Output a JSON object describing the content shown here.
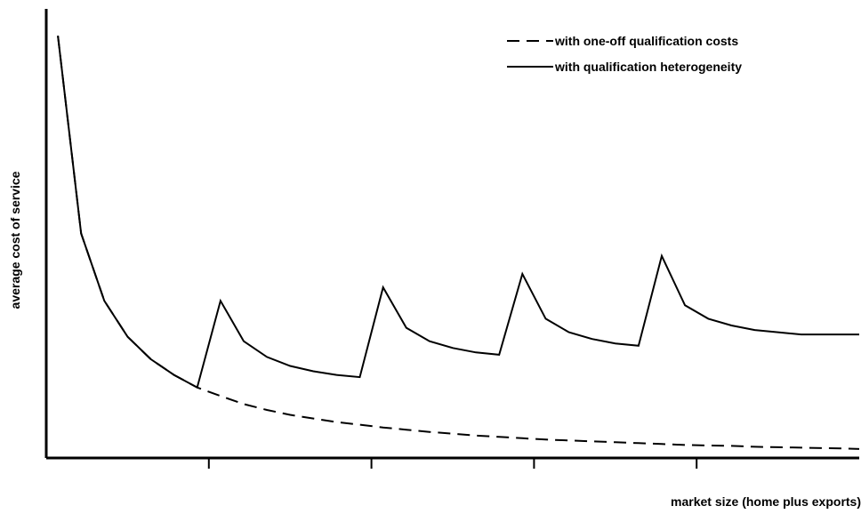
{
  "chart_data": {
    "type": "line",
    "title": "",
    "xlabel": "market size (home plus exports)",
    "ylabel": "average cost of service",
    "x_ticks": [
      7,
      14,
      21,
      28
    ],
    "xlim": [
      0,
      35
    ],
    "ylim": [
      0,
      10
    ],
    "grid": false,
    "legend_position": "top-right",
    "series": [
      {
        "name": "with one-off qualification costs",
        "style": "dashed",
        "color": "#000000",
        "x": [
          0.5,
          1.5,
          2.5,
          3.5,
          4.5,
          5.5,
          6.5,
          7.5,
          8.5,
          9.5,
          10.5,
          11.5,
          12.5,
          13.5,
          14.5,
          15.5,
          16.5,
          17.5,
          18.5,
          19.5,
          20.5,
          21.5,
          22.5,
          23.5,
          24.5,
          25.5,
          26.5,
          27.5,
          28.5,
          29.5,
          30.5,
          31.5,
          32.5,
          33.5,
          34.5,
          35.0
        ],
        "values": [
          9.4,
          5.0,
          3.5,
          2.7,
          2.2,
          1.85,
          1.57,
          1.38,
          1.2,
          1.07,
          0.96,
          0.88,
          0.8,
          0.74,
          0.68,
          0.63,
          0.58,
          0.54,
          0.5,
          0.47,
          0.44,
          0.41,
          0.39,
          0.37,
          0.35,
          0.33,
          0.31,
          0.29,
          0.28,
          0.27,
          0.25,
          0.24,
          0.23,
          0.22,
          0.21,
          0.2
        ]
      },
      {
        "name": "with qualification heterogeneity",
        "style": "solid",
        "color": "#000000",
        "x": [
          0.5,
          1.5,
          2.5,
          3.5,
          4.5,
          5.5,
          6.5,
          7.5,
          8.5,
          9.5,
          10.5,
          11.5,
          12.5,
          13.5,
          14.5,
          15.5,
          16.5,
          17.5,
          18.5,
          19.5,
          20.5,
          21.5,
          22.5,
          23.5,
          24.5,
          25.5,
          26.5,
          27.5,
          28.5,
          29.5,
          30.5,
          31.5,
          32.5,
          33.5,
          34.5,
          35.0
        ],
        "values": [
          9.4,
          5.0,
          3.5,
          2.7,
          2.2,
          1.85,
          1.57,
          3.5,
          2.6,
          2.25,
          2.05,
          1.93,
          1.85,
          1.8,
          3.8,
          2.9,
          2.6,
          2.45,
          2.35,
          2.3,
          4.1,
          3.1,
          2.8,
          2.65,
          2.55,
          2.5,
          4.5,
          3.4,
          3.1,
          2.95,
          2.85,
          2.8,
          2.75,
          2.75,
          2.75,
          2.75
        ]
      }
    ]
  }
}
